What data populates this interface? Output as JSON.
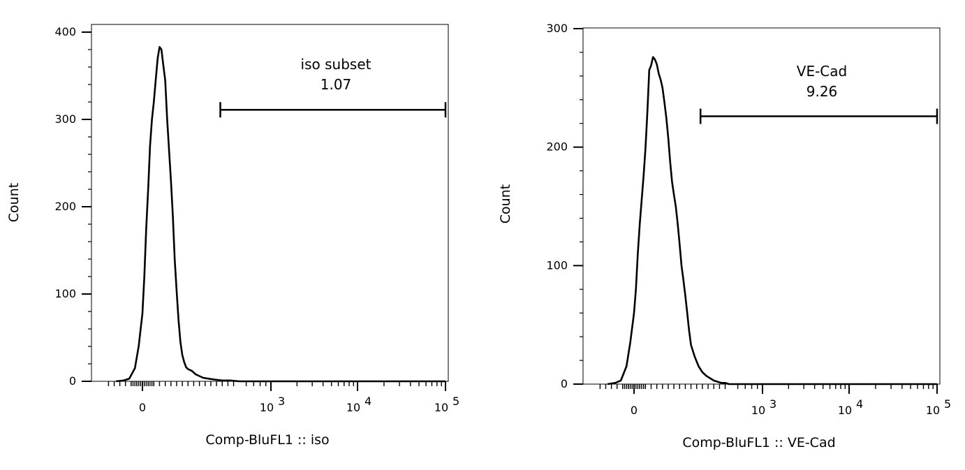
{
  "chart_data": [
    {
      "type": "line",
      "panel": "left",
      "ylabel": "Count",
      "xlabel": "Comp-BluFL1 :: iso",
      "ylim": [
        0,
        400
      ],
      "y_ticks": [
        {
          "value": 0,
          "label": "0"
        },
        {
          "value": 100,
          "label": "100"
        },
        {
          "value": 200,
          "label": "200"
        },
        {
          "value": 300,
          "label": "300"
        },
        {
          "value": 400,
          "label": "400"
        }
      ],
      "x_scale": "logicle",
      "x_ticks": [
        {
          "value": 0,
          "label": "0",
          "exp": ""
        },
        {
          "value": 1000,
          "label": "10",
          "exp": "3"
        },
        {
          "value": 10000,
          "label": "10",
          "exp": "4"
        },
        {
          "value": 100000,
          "label": "10",
          "exp": "5"
        }
      ],
      "gate": {
        "name": "iso subset",
        "value": "1.07",
        "x_start": 410,
        "x_end": 100000,
        "y": 311
      },
      "series": [
        {
          "x": [
            -140,
            -100,
            -70,
            -40,
            -20,
            0,
            10,
            20,
            30,
            40,
            50,
            60,
            70,
            80,
            90,
            100,
            110,
            120,
            130,
            140,
            150,
            160,
            170,
            180,
            190,
            200,
            210,
            220,
            230,
            240,
            250,
            260,
            280,
            300,
            320,
            350,
            380,
            420,
            460,
            520,
            600,
            700,
            850,
            1000,
            2000,
            5000,
            10000,
            100000
          ],
          "y": [
            0,
            1,
            3,
            15,
            40,
            78,
            120,
            175,
            220,
            270,
            300,
            320,
            345,
            370,
            383,
            380,
            362,
            345,
            300,
            265,
            230,
            190,
            140,
            103,
            70,
            45,
            30,
            22,
            16,
            14,
            13,
            12,
            8,
            6,
            4,
            3,
            2,
            1,
            1,
            0,
            0,
            0,
            0,
            0,
            0,
            0,
            0,
            0
          ]
        }
      ]
    },
    {
      "type": "line",
      "panel": "right",
      "ylabel": "Count",
      "xlabel": "Comp-BluFL1 :: VE-Cad",
      "ylim": [
        0,
        300
      ],
      "y_ticks": [
        {
          "value": 0,
          "label": "0"
        },
        {
          "value": 100,
          "label": "100"
        },
        {
          "value": 200,
          "label": "200"
        },
        {
          "value": 300,
          "label": "300"
        }
      ],
      "x_scale": "logicle",
      "x_ticks": [
        {
          "value": 0,
          "label": "0",
          "exp": ""
        },
        {
          "value": 1000,
          "label": "10",
          "exp": "3"
        },
        {
          "value": 10000,
          "label": "10",
          "exp": "4"
        },
        {
          "value": 100000,
          "label": "10",
          "exp": "5"
        }
      ],
      "gate": {
        "name": "VE-Cad",
        "value": "9.26",
        "x_start": 350,
        "x_end": 100000,
        "y": 226
      },
      "series": [
        {
          "x": [
            -140,
            -100,
            -70,
            -40,
            -20,
            0,
            10,
            20,
            30,
            40,
            50,
            60,
            70,
            80,
            90,
            100,
            110,
            120,
            130,
            140,
            150,
            160,
            170,
            180,
            190,
            200,
            210,
            220,
            230,
            240,
            250,
            260,
            270,
            280,
            290,
            300,
            320,
            340,
            360,
            380,
            400,
            420,
            440,
            460,
            480,
            500,
            530,
            560,
            600,
            650,
            700,
            800,
            1000,
            5000,
            100000
          ],
          "y": [
            0,
            1,
            3,
            15,
            35,
            60,
            80,
            110,
            135,
            155,
            175,
            198,
            228,
            265,
            269,
            276,
            274,
            270,
            262,
            257,
            250,
            238,
            225,
            208,
            188,
            171,
            160,
            150,
            135,
            118,
            100,
            88,
            75,
            60,
            45,
            33,
            23,
            15,
            10,
            7,
            5,
            3,
            2,
            1,
            1,
            0,
            0,
            0,
            0,
            0,
            0,
            0,
            0,
            0,
            0
          ]
        }
      ]
    }
  ]
}
